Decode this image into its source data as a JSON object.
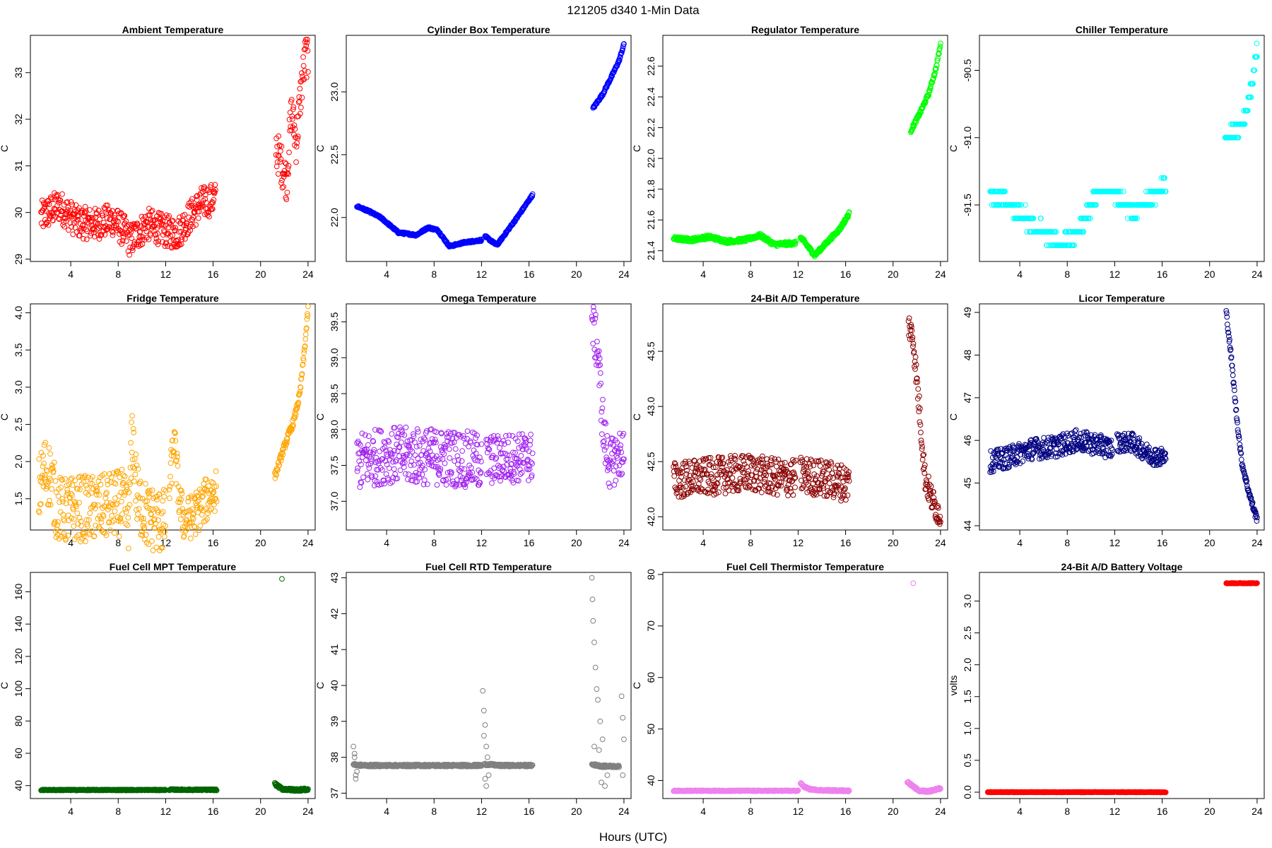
{
  "figure": {
    "title": "121205    d340    1-Min Data",
    "xlabel": "Hours (UTC)"
  },
  "chart_data": [
    {
      "type": "scatter",
      "title": "Ambient Temperature",
      "ylabel": "C",
      "color": "#ff0000",
      "xlim": [
        0.6,
        24.6
      ],
      "ylim": [
        28.95,
        33.8
      ],
      "xticks": [
        4,
        8,
        12,
        16,
        20,
        24
      ],
      "yticks": [
        29,
        30,
        31,
        32,
        33
      ],
      "ytick_labels": [
        "29",
        "30",
        "31",
        "32",
        "33"
      ],
      "series": [
        {
          "x": [
            1.5,
            3,
            4.5,
            6,
            7.5,
            8.5,
            9,
            10.5,
            12,
            13,
            14,
            15,
            16.2
          ],
          "y": [
            29.9,
            30.15,
            29.8,
            29.75,
            29.85,
            29.6,
            29.4,
            29.75,
            29.6,
            29.55,
            29.9,
            30.2,
            30.3
          ],
          "amp": 0.35
        },
        {
          "x": [
            21.3,
            21.8,
            22.2,
            22.6,
            23.0,
            23.4,
            23.8,
            24.0
          ],
          "y": [
            31.4,
            31.0,
            30.7,
            32.2,
            31.5,
            32.6,
            33.4,
            33.2
          ],
          "amp": 0.45
        }
      ]
    },
    {
      "type": "scatter",
      "title": "Cylinder Box Temperature",
      "ylabel": "C",
      "color": "#0000ff",
      "xlim": [
        0.6,
        24.6
      ],
      "ylim": [
        21.65,
        23.45
      ],
      "xticks": [
        4,
        8,
        12,
        16,
        20,
        24
      ],
      "yticks": [
        22.0,
        22.5,
        23.0
      ],
      "ytick_labels": [
        "22.0",
        "22.5",
        "23.0"
      ],
      "series": [
        {
          "x": [
            1.5,
            2.5,
            3.5,
            5,
            6.5,
            7.5,
            8.3,
            9.3,
            10.5,
            12
          ],
          "y": [
            22.09,
            22.05,
            22.0,
            21.88,
            21.86,
            21.92,
            21.9,
            21.77,
            21.8,
            21.82
          ],
          "amp": 0.008
        },
        {
          "x": [
            12.3,
            13.3,
            14,
            15,
            16.3
          ],
          "y": [
            21.85,
            21.78,
            21.87,
            22.0,
            22.18
          ],
          "amp": 0.008
        },
        {
          "x": [
            21.4,
            22.2,
            23.0,
            23.6,
            24.0
          ],
          "y": [
            22.87,
            22.98,
            23.13,
            23.25,
            23.38
          ],
          "amp": 0.01
        }
      ]
    },
    {
      "type": "scatter",
      "title": "Regulator Temperature",
      "ylabel": "C",
      "color": "#00ff00",
      "xlim": [
        0.6,
        24.6
      ],
      "ylim": [
        21.33,
        22.8
      ],
      "xticks": [
        4,
        8,
        12,
        16,
        20,
        24
      ],
      "yticks": [
        21.4,
        21.6,
        21.8,
        22.0,
        22.2,
        22.4,
        22.6
      ],
      "ytick_labels": [
        "21.4",
        "21.6",
        "21.8",
        "22.0",
        "22.2",
        "22.4",
        "22.6"
      ],
      "series": [
        {
          "x": [
            1.5,
            3,
            4.5,
            6,
            7.5,
            8.8,
            10,
            11.8
          ],
          "y": [
            21.48,
            21.47,
            21.49,
            21.46,
            21.47,
            21.5,
            21.44,
            21.45
          ],
          "amp": 0.012
        },
        {
          "x": [
            12.2,
            13.4,
            14.5,
            15.5,
            16.3
          ],
          "y": [
            21.49,
            21.37,
            21.46,
            21.54,
            21.64
          ],
          "amp": 0.012
        },
        {
          "x": [
            21.5,
            22.3,
            23.0,
            23.6,
            24.0
          ],
          "y": [
            22.18,
            22.3,
            22.42,
            22.58,
            22.74
          ],
          "amp": 0.012
        }
      ]
    },
    {
      "type": "scatter",
      "title": "Chiller Temperature",
      "ylabel": "C",
      "color": "#00ffff",
      "xlim": [
        0.6,
        24.6
      ],
      "ylim": [
        -91.92,
        -90.24
      ],
      "xticks": [
        4,
        8,
        12,
        16,
        20,
        24
      ],
      "yticks": [
        -91.5,
        -91.0,
        -90.5
      ],
      "ytick_labels": [
        "-91.5",
        "-91.0",
        "-90.5"
      ],
      "series": [
        {
          "x": [
            1.5,
            3,
            4.5,
            6,
            7.5,
            8.5,
            9.5,
            10.5,
            12,
            13.5,
            15,
            16.3
          ],
          "y": [
            -91.4,
            -91.5,
            -91.6,
            -91.7,
            -91.8,
            -91.75,
            -91.6,
            -91.4,
            -91.4,
            -91.55,
            -91.45,
            -91.35
          ],
          "amp": 0.05,
          "quant": 0.1
        },
        {
          "x": [
            21.3,
            22.3,
            23.0,
            23.6,
            24.0
          ],
          "y": [
            -91.0,
            -90.95,
            -90.85,
            -90.6,
            -90.35
          ],
          "amp": 0.03,
          "quant": 0.1
        }
      ]
    },
    {
      "type": "scatter",
      "title": "Fridge Temperature",
      "ylabel": "C",
      "color": "#ffa500",
      "xlim": [
        0.6,
        24.6
      ],
      "ylim": [
        1.08,
        4.12
      ],
      "xticks": [
        4,
        8,
        12,
        16,
        20,
        24
      ],
      "yticks": [
        1.5,
        2.0,
        2.5,
        3.0,
        3.5,
        4.0
      ],
      "ytick_labels": [
        "1.5",
        "2.0",
        "2.5",
        "3.0",
        "3.5",
        "4.0"
      ],
      "series": [
        {
          "x": [
            1.3,
            1.8,
            2.3,
            2.8,
            3.4,
            4.5,
            6.5,
            7.5,
            8.3,
            8.9,
            9.2,
            9.6,
            10.5,
            11.5,
            12.0
          ],
          "y": [
            1.6,
            1.9,
            1.8,
            1.4,
            1.33,
            1.37,
            1.37,
            1.42,
            1.45,
            1.25,
            2.4,
            1.5,
            1.25,
            1.2,
            1.19
          ],
          "amp": 0.45
        },
        {
          "x": [
            12.3,
            12.7,
            13.2,
            13.6,
            14.5,
            15.5,
            16.3
          ],
          "y": [
            1.6,
            2.3,
            1.4,
            1.2,
            1.3,
            1.5,
            1.65
          ],
          "amp": 0.3
        },
        {
          "x": [
            21.2,
            22.0,
            22.8,
            23.3,
            23.7,
            24.0
          ],
          "y": [
            1.8,
            2.2,
            2.55,
            2.9,
            3.5,
            4.05
          ],
          "amp": 0.05
        }
      ]
    },
    {
      "type": "scatter",
      "title": "Omega Temperature",
      "ylabel": "C",
      "color": "#a020f0",
      "xlim": [
        0.6,
        24.6
      ],
      "ylim": [
        36.6,
        39.75
      ],
      "xticks": [
        4,
        8,
        12,
        16,
        20,
        24
      ],
      "yticks": [
        37.0,
        37.5,
        38.0,
        38.5,
        39.0,
        39.5
      ],
      "ytick_labels": [
        "37.0",
        "37.5",
        "38.0",
        "38.5",
        "39.0",
        "39.5"
      ],
      "series": [
        {
          "x": [
            1.5,
            4,
            6,
            8,
            10,
            12
          ],
          "y": [
            37.55,
            37.65,
            37.63,
            37.62,
            37.6,
            37.55
          ],
          "amp": 0.4
        },
        {
          "x": [
            12.4,
            14,
            16.3
          ],
          "y": [
            37.57,
            37.6,
            37.62
          ],
          "amp": 0.35
        },
        {
          "x": [
            21.3,
            21.8,
            22.3,
            22.8,
            23.3,
            24.0
          ],
          "y": [
            39.5,
            39.1,
            37.9,
            37.5,
            37.6,
            37.7
          ],
          "amp": 0.35
        }
      ]
    },
    {
      "type": "scatter",
      "title": "24-Bit A/D Temperature",
      "ylabel": "C",
      "color": "#8b0000",
      "xlim": [
        0.6,
        24.6
      ],
      "ylim": [
        41.88,
        43.93
      ],
      "xticks": [
        4,
        8,
        12,
        16,
        20,
        24
      ],
      "yticks": [
        42.0,
        42.5,
        43.0,
        43.5
      ],
      "ytick_labels": [
        "42.0",
        "42.5",
        "43.0",
        "43.5"
      ],
      "series": [
        {
          "x": [
            1.5,
            4,
            6,
            8,
            10,
            11.8
          ],
          "y": [
            42.33,
            42.36,
            42.38,
            42.4,
            42.36,
            42.35
          ],
          "amp": 0.17
        },
        {
          "x": [
            12.2,
            14,
            16.3
          ],
          "y": [
            42.38,
            42.35,
            42.3
          ],
          "amp": 0.17
        },
        {
          "x": [
            21.3,
            21.7,
            22.2,
            22.7,
            23.3,
            24.0
          ],
          "y": [
            43.75,
            43.6,
            43.0,
            42.35,
            42.15,
            42.0
          ],
          "amp": 0.12
        }
      ]
    },
    {
      "type": "scatter",
      "title": "Licor Temperature",
      "ylabel": "C",
      "color": "#000080",
      "xlim": [
        0.6,
        24.6
      ],
      "ylim": [
        43.9,
        49.2
      ],
      "xticks": [
        4,
        8,
        12,
        16,
        20,
        24
      ],
      "yticks": [
        44,
        45,
        46,
        47,
        48,
        49
      ],
      "ytick_labels": [
        "44",
        "45",
        "46",
        "47",
        "48",
        "49"
      ],
      "series": [
        {
          "x": [
            1.5,
            3,
            5,
            7,
            8.8,
            10.5,
            11.8
          ],
          "y": [
            45.5,
            45.6,
            45.8,
            45.85,
            46.0,
            45.9,
            45.8
          ],
          "amp": 0.25
        },
        {
          "x": [
            12.2,
            13.5,
            15,
            16.3
          ],
          "y": [
            45.95,
            45.95,
            45.65,
            45.6
          ],
          "amp": 0.22
        },
        {
          "x": [
            21.4,
            21.8,
            22.3,
            22.7,
            23.2,
            23.7,
            24.0
          ],
          "y": [
            49.0,
            48.0,
            46.5,
            45.5,
            44.9,
            44.4,
            44.15
          ],
          "amp": 0.08
        }
      ]
    },
    {
      "type": "scatter",
      "title": "Fuel Cell MPT Temperature",
      "ylabel": "C",
      "color": "#006400",
      "xlim": [
        0.6,
        24.6
      ],
      "ylim": [
        32,
        172
      ],
      "xticks": [
        4,
        8,
        12,
        16,
        20,
        24
      ],
      "yticks": [
        40,
        60,
        80,
        100,
        120,
        140,
        160
      ],
      "ytick_labels": [
        "40",
        "60",
        "80",
        "100",
        "120",
        "140",
        "160"
      ],
      "series": [
        {
          "x": [
            1.5,
            6,
            12
          ],
          "y": [
            37.3,
            37.3,
            37.3
          ],
          "amp": 0.3
        },
        {
          "x": [
            12.3,
            14,
            16.3
          ],
          "y": [
            37.5,
            37.4,
            37.4
          ],
          "amp": 0.4
        },
        {
          "x": [
            21.2,
            21.8,
            22.4,
            23.0,
            24.0
          ],
          "y": [
            41,
            38,
            37.5,
            37.4,
            37.6
          ],
          "amp": 0.8
        },
        {
          "x": [
            21.8
          ],
          "y": [
            168
          ]
        }
      ]
    },
    {
      "type": "scatter",
      "title": "Fuel Cell RTD Temperature",
      "ylabel": "C",
      "color": "#808080",
      "xlim": [
        0.6,
        24.6
      ],
      "ylim": [
        36.85,
        43.15
      ],
      "xticks": [
        4,
        8,
        12,
        16,
        20,
        24
      ],
      "yticks": [
        37,
        38,
        39,
        40,
        41,
        42,
        43
      ],
      "ytick_labels": [
        "37",
        "38",
        "39",
        "40",
        "41",
        "42",
        "43"
      ],
      "series": [
        {
          "x": [
            1.2,
            1.6,
            2.5,
            6,
            12
          ],
          "y": [
            37.8,
            37.78,
            37.77,
            37.77,
            37.77
          ],
          "amp": 0.03
        },
        {
          "x": [
            12.2,
            12.6,
            13.5,
            16.3
          ],
          "y": [
            37.8,
            37.8,
            37.77,
            37.77
          ],
          "amp": 0.03
        },
        {
          "x": [
            21.3,
            22.2,
            23.0,
            23.6
          ],
          "y": [
            37.8,
            37.75,
            37.75,
            37.74
          ],
          "amp": 0.03
        },
        {
          "x": [
            1.2,
            1.3,
            1.4,
            1.5,
            1.3,
            1.4
          ],
          "y": [
            38.3,
            38.1,
            37.5,
            37.6,
            38.0,
            37.4
          ]
        },
        {
          "x": [
            12.1,
            12.2,
            12.3,
            12.4,
            12.5,
            12.3,
            12.6,
            12.4,
            12.2
          ],
          "y": [
            39.85,
            39.3,
            38.9,
            38.3,
            38.0,
            37.4,
            37.5,
            37.2,
            38.6
          ]
        },
        {
          "x": [
            21.3,
            21.35,
            21.4,
            21.5,
            21.6,
            21.7,
            21.8,
            22.0,
            22.2,
            21.5,
            21.9,
            22.4,
            22.6,
            22.1,
            23.8,
            23.9,
            24.0,
            23.9
          ],
          "y": [
            43.0,
            42.4,
            41.8,
            41.2,
            40.5,
            39.9,
            39.6,
            39.0,
            38.5,
            38.3,
            38.2,
            37.2,
            37.5,
            37.3,
            39.7,
            39.1,
            38.5,
            37.5
          ]
        }
      ]
    },
    {
      "type": "scatter",
      "title": "Fuel Cell Thermistor Temperature",
      "ylabel": "C",
      "color": "#ee82ee",
      "xlim": [
        0.6,
        24.6
      ],
      "ylim": [
        36.5,
        80.4
      ],
      "xticks": [
        4,
        8,
        12,
        16,
        20,
        24
      ],
      "yticks": [
        40,
        50,
        60,
        70,
        80
      ],
      "ytick_labels": [
        "40",
        "50",
        "60",
        "70",
        "80"
      ],
      "series": [
        {
          "x": [
            1.5,
            6,
            12
          ],
          "y": [
            38.0,
            38.0,
            38.0
          ],
          "amp": 0.1
        },
        {
          "x": [
            12.2,
            12.5,
            13.0,
            14,
            16.3
          ],
          "y": [
            39.5,
            38.8,
            38.3,
            38.1,
            38.0
          ],
          "amp": 0.15
        },
        {
          "x": [
            21.2,
            21.7,
            22.2,
            23.0,
            24.0
          ],
          "y": [
            39.8,
            38.8,
            38.0,
            37.9,
            38.5
          ],
          "amp": 0.2
        },
        {
          "x": [
            21.7
          ],
          "y": [
            78.3
          ]
        }
      ]
    },
    {
      "type": "scatter",
      "title": "24-Bit A/D Battery Voltage",
      "ylabel": "volts",
      "color": "#ff0000",
      "xlim": [
        0.6,
        24.6
      ],
      "ylim": [
        -0.1,
        3.45
      ],
      "xticks": [
        4,
        8,
        12,
        16,
        20,
        24
      ],
      "yticks": [
        0.0,
        0.5,
        1.0,
        1.5,
        2.0,
        2.5,
        3.0
      ],
      "ytick_labels": [
        "0.0",
        "0.5",
        "1.0",
        "1.5",
        "2.0",
        "2.5",
        "3.0"
      ],
      "series": [
        {
          "x": [
            1.3,
            12
          ],
          "y": [
            0.0,
            0.0
          ],
          "amp": 0.004
        },
        {
          "x": [
            12.2,
            16.3
          ],
          "y": [
            0.0,
            0.0
          ],
          "amp": 0.004
        },
        {
          "x": [
            21.4,
            24.0
          ],
          "y": [
            3.28,
            3.28
          ],
          "amp": 0.004
        }
      ]
    }
  ]
}
